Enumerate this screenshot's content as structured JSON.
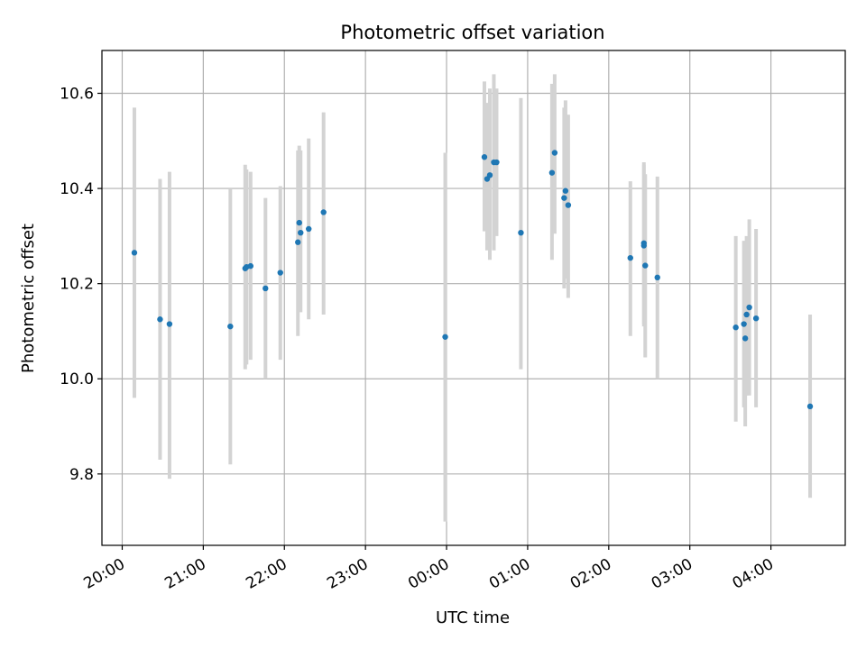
{
  "chart_data": {
    "type": "scatter",
    "title": "Photometric offset variation",
    "xlabel": "UTC time",
    "ylabel": "Photometric offset",
    "x_unit": "UTC time of night (20:00 to 04:30, crossing midnight)",
    "xlim": [
      "19:45",
      "04:55"
    ],
    "ylim": [
      9.65,
      10.69
    ],
    "x_ticks": [
      "20:00",
      "21:00",
      "22:00",
      "23:00",
      "00:00",
      "01:00",
      "02:00",
      "03:00",
      "04:00"
    ],
    "y_ticks": [
      9.8,
      10.0,
      10.2,
      10.4,
      10.6
    ],
    "y_tick_labels": [
      "9.8",
      "10.0",
      "10.2",
      "10.4",
      "10.6"
    ],
    "grid": true,
    "legend": "none",
    "colors": {
      "point": "#1f77b4",
      "errorbar": "#d3d3d3",
      "grid": "#b0b0b0"
    },
    "points": [
      {
        "t": "20:09",
        "y": 10.265,
        "lo": 9.96,
        "hi": 10.57
      },
      {
        "t": "20:28",
        "y": 10.125,
        "lo": 9.83,
        "hi": 10.42
      },
      {
        "t": "20:35",
        "y": 10.115,
        "lo": 9.79,
        "hi": 10.435
      },
      {
        "t": "21:20",
        "y": 10.11,
        "lo": 9.82,
        "hi": 10.4
      },
      {
        "t": "21:31",
        "y": 10.232,
        "lo": 10.02,
        "hi": 10.45
      },
      {
        "t": "21:32",
        "y": 10.235,
        "lo": 10.03,
        "hi": 10.44
      },
      {
        "t": "21:35",
        "y": 10.237,
        "lo": 10.04,
        "hi": 10.435
      },
      {
        "t": "21:46",
        "y": 10.19,
        "lo": 10.0,
        "hi": 10.38
      },
      {
        "t": "21:57",
        "y": 10.223,
        "lo": 10.04,
        "hi": 10.405
      },
      {
        "t": "22:10",
        "y": 10.287,
        "lo": 10.09,
        "hi": 10.48
      },
      {
        "t": "22:11",
        "y": 10.328,
        "lo": 10.16,
        "hi": 10.49
      },
      {
        "t": "22:12",
        "y": 10.307,
        "lo": 10.14,
        "hi": 10.48
      },
      {
        "t": "22:18",
        "y": 10.315,
        "lo": 10.125,
        "hi": 10.505
      },
      {
        "t": "22:29",
        "y": 10.35,
        "lo": 10.135,
        "hi": 10.56
      },
      {
        "t": "23:59",
        "y": 10.088,
        "lo": 9.7,
        "hi": 10.475
      },
      {
        "t": "00:28",
        "y": 10.466,
        "lo": 10.31,
        "hi": 10.625
      },
      {
        "t": "00:30",
        "y": 10.42,
        "lo": 10.27,
        "hi": 10.58
      },
      {
        "t": "00:32",
        "y": 10.428,
        "lo": 10.25,
        "hi": 10.61
      },
      {
        "t": "00:35",
        "y": 10.455,
        "lo": 10.27,
        "hi": 10.64
      },
      {
        "t": "00:37",
        "y": 10.455,
        "lo": 10.3,
        "hi": 10.61
      },
      {
        "t": "00:55",
        "y": 10.307,
        "lo": 10.02,
        "hi": 10.59
      },
      {
        "t": "01:18",
        "y": 10.433,
        "lo": 10.25,
        "hi": 10.62
      },
      {
        "t": "01:20",
        "y": 10.475,
        "lo": 10.305,
        "hi": 10.64
      },
      {
        "t": "01:27",
        "y": 10.38,
        "lo": 10.19,
        "hi": 10.57
      },
      {
        "t": "01:28",
        "y": 10.395,
        "lo": 10.21,
        "hi": 10.585
      },
      {
        "t": "01:30",
        "y": 10.365,
        "lo": 10.17,
        "hi": 10.555
      },
      {
        "t": "02:16",
        "y": 10.254,
        "lo": 10.09,
        "hi": 10.415
      },
      {
        "t": "02:26",
        "y": 10.285,
        "lo": 10.115,
        "hi": 10.455
      },
      {
        "t": "02:26",
        "y": 10.28,
        "lo": 10.11,
        "hi": 10.45
      },
      {
        "t": "02:27",
        "y": 10.238,
        "lo": 10.045,
        "hi": 10.43
      },
      {
        "t": "02:36",
        "y": 10.213,
        "lo": 10.0,
        "hi": 10.425
      },
      {
        "t": "03:34",
        "y": 10.108,
        "lo": 9.91,
        "hi": 10.3
      },
      {
        "t": "03:40",
        "y": 10.115,
        "lo": 9.94,
        "hi": 10.29
      },
      {
        "t": "03:41",
        "y": 10.085,
        "lo": 9.9,
        "hi": 10.27
      },
      {
        "t": "03:42",
        "y": 10.135,
        "lo": 9.965,
        "hi": 10.3
      },
      {
        "t": "03:44",
        "y": 10.15,
        "lo": 9.965,
        "hi": 10.335
      },
      {
        "t": "03:49",
        "y": 10.127,
        "lo": 9.94,
        "hi": 10.315
      },
      {
        "t": "04:29",
        "y": 9.942,
        "lo": 9.75,
        "hi": 10.135
      }
    ]
  }
}
